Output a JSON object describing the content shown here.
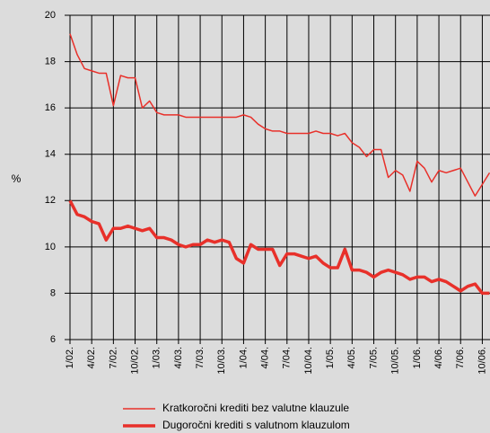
{
  "chart_data": {
    "type": "line",
    "y_label": "%",
    "categories": [
      "1/02.",
      null,
      null,
      "4/02.",
      null,
      null,
      "7/02.",
      null,
      null,
      "10/02.",
      null,
      null,
      "1/03.",
      null,
      null,
      "4/03.",
      null,
      null,
      "7/03.",
      null,
      null,
      "10/03.",
      null,
      null,
      "1/04.",
      null,
      null,
      "4/04.",
      null,
      null,
      "7/04.",
      null,
      null,
      "10/04.",
      null,
      null,
      "1/05.",
      null,
      null,
      "4/05.",
      null,
      null,
      "7/05.",
      null,
      null,
      "10/05.",
      null,
      null,
      "1/06.",
      null,
      null,
      "4/06.",
      null,
      null,
      "7/06.",
      null,
      null,
      "10/06.",
      null
    ],
    "series": [
      {
        "name": "Kratkoročni krediti bez valutne klauzule",
        "color": "#e8302a",
        "values": [
          19.2,
          18.3,
          17.7,
          17.6,
          17.5,
          17.5,
          16.1,
          17.4,
          17.3,
          17.3,
          16.0,
          16.3,
          15.8,
          15.7,
          15.7,
          15.7,
          15.6,
          15.6,
          15.6,
          15.6,
          15.6,
          15.6,
          15.6,
          15.6,
          15.7,
          15.6,
          15.3,
          15.1,
          15.0,
          15.0,
          14.9,
          14.9,
          14.9,
          14.9,
          15.0,
          14.9,
          14.9,
          14.8,
          14.9,
          14.5,
          14.3,
          13.9,
          14.2,
          14.2,
          13.0,
          13.3,
          13.1,
          12.4,
          13.7,
          13.4,
          12.8,
          13.3,
          13.2,
          13.3,
          13.4,
          12.8,
          12.2,
          12.7,
          13.2
        ]
      },
      {
        "name": "Dugoročni krediti s valutnom klauzulom",
        "color": "#e8302a",
        "values": [
          12.0,
          11.4,
          11.3,
          11.1,
          11.0,
          10.3,
          10.8,
          10.8,
          10.9,
          10.8,
          10.7,
          10.8,
          10.4,
          10.4,
          10.3,
          10.1,
          10.0,
          10.1,
          10.1,
          10.3,
          10.2,
          10.3,
          10.2,
          9.5,
          9.3,
          10.1,
          9.9,
          9.9,
          9.9,
          9.2,
          9.7,
          9.7,
          9.6,
          9.5,
          9.6,
          9.3,
          9.1,
          9.1,
          9.9,
          9.0,
          9.0,
          8.9,
          8.7,
          8.9,
          9.0,
          8.9,
          8.8,
          8.6,
          8.7,
          8.7,
          8.5,
          8.6,
          8.5,
          8.3,
          8.1,
          8.3,
          8.4,
          8.0,
          8.0
        ]
      }
    ],
    "ylim": [
      6,
      20
    ],
    "yticks": [
      6,
      8,
      10,
      12,
      14,
      16,
      18,
      20
    ],
    "grid": true
  }
}
